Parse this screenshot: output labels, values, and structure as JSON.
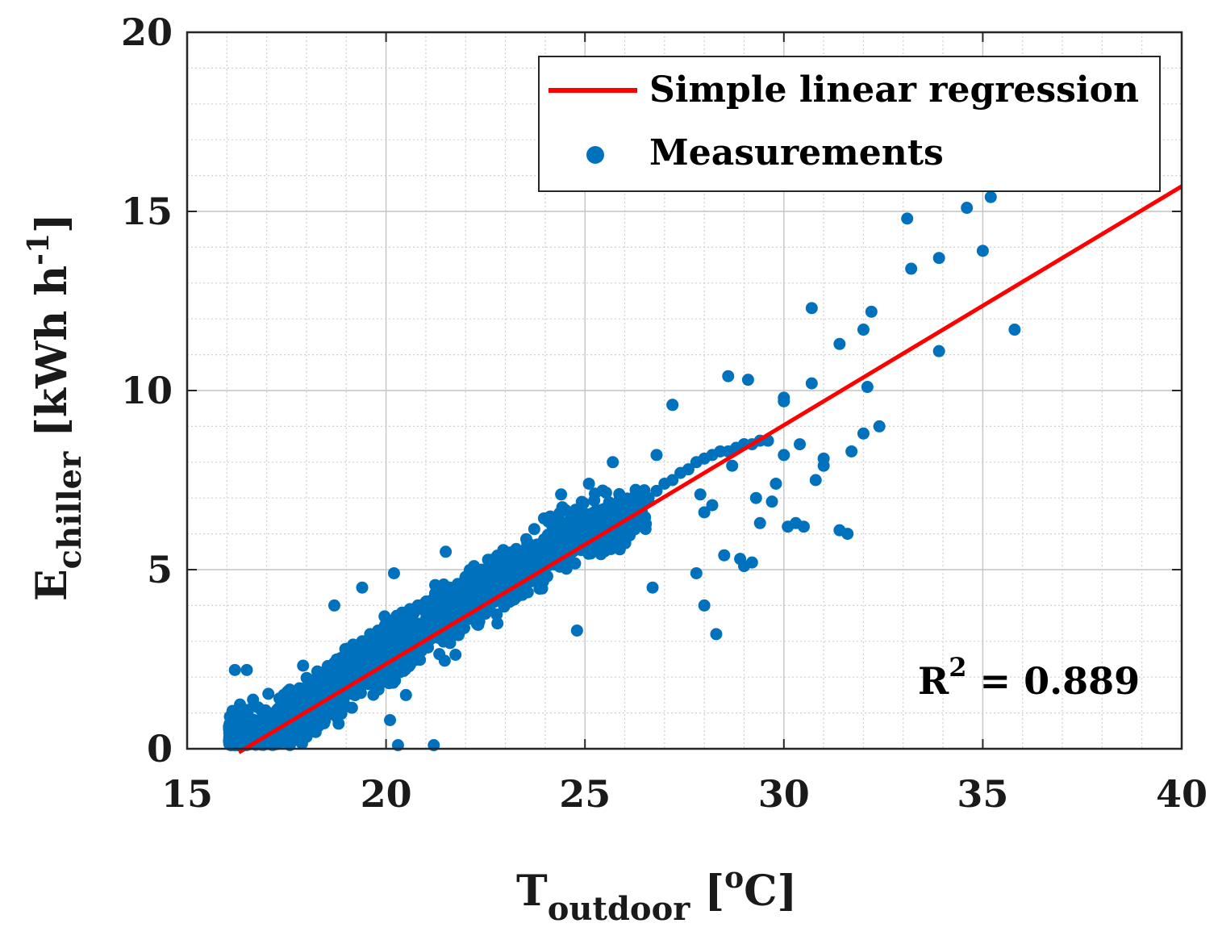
{
  "chart_data": {
    "type": "scatter",
    "title": "",
    "xlabel": {
      "main": "T",
      "sub": "outdoor",
      "open": " [",
      "sup": "o",
      "close": "C]"
    },
    "ylabel": {
      "main": "E",
      "sub": "chiller",
      "text": " [kWh h",
      "sup": "-1",
      "close": "]"
    },
    "xlim": [
      15,
      40
    ],
    "ylim": [
      0,
      20
    ],
    "xticks": [
      15,
      20,
      25,
      30,
      35,
      40
    ],
    "yticks": [
      0,
      5,
      10,
      15,
      20
    ],
    "grid": true,
    "minor_grid": true,
    "legend": {
      "placement": "top-right",
      "entries": [
        "Simple linear regression",
        "Measurements"
      ]
    },
    "annotation": {
      "prefix": "R",
      "sup": "2",
      "text": " = 0.889"
    },
    "colors": {
      "regression": "#ff0000",
      "measurements": "#0072bd"
    },
    "series": [
      {
        "name": "Simple linear regression",
        "type": "line",
        "x": [
          16.3,
          40.0
        ],
        "y": [
          -0.1,
          15.7
        ]
      },
      {
        "name": "Measurements",
        "type": "scatter",
        "notes": "Dense cloud of ~2000 points (approx. 16–26 °C, 0–7 kWh/h) plus sparse outliers listed below",
        "x": [
          16.2,
          16.4,
          16.8,
          17.0,
          17.3,
          17.5,
          17.7,
          17.9,
          18.1,
          18.3,
          18.5,
          18.7,
          19.0,
          19.2,
          19.4,
          19.6,
          19.8,
          20.0,
          20.2,
          20.4,
          20.6,
          20.8,
          21.0,
          21.2,
          21.4,
          21.6,
          21.8,
          22.0,
          22.2,
          22.4,
          22.6,
          22.8,
          23.0,
          23.2,
          23.4,
          23.6,
          23.8,
          24.0,
          24.2,
          24.4,
          24.6,
          24.8,
          25.0,
          25.2,
          25.4,
          25.6,
          25.8,
          26.0,
          26.2,
          26.4,
          26.6,
          26.8,
          27.0,
          27.2,
          27.4,
          27.6,
          27.8,
          28.0,
          28.2,
          28.4,
          28.6,
          28.8,
          29.0,
          29.2,
          29.4,
          29.6,
          16.2,
          16.5,
          20.3,
          21.2,
          20.5,
          20.1,
          20.2,
          19.4,
          18.7,
          21.5,
          22.8,
          22.3,
          23.1,
          25.7,
          26.8,
          25.1,
          24.4,
          24.8,
          27.2,
          26.7,
          28.3,
          28.0,
          27.8,
          28.5,
          28.9,
          29.0,
          29.2,
          29.4,
          29.8,
          30.0,
          30.4,
          30.1,
          30.8,
          31.0,
          31.4,
          31.6,
          31.7,
          32.0,
          32.1,
          32.2,
          32.4,
          31.4,
          32.0,
          30.7,
          30.0,
          29.1,
          28.6,
          27.2,
          33.1,
          33.2,
          33.9,
          33.9,
          34.6,
          35.0,
          35.2,
          35.8,
          30.0,
          30.7,
          31.0,
          30.5,
          30.3,
          29.7,
          29.3,
          29.0,
          28.7,
          28.2,
          28.0,
          27.9
        ],
        "y": [
          0.1,
          0.2,
          0.5,
          0.6,
          0.8,
          1.0,
          1.3,
          1.5,
          1.8,
          2.0,
          2.2,
          2.4,
          2.6,
          2.8,
          3.0,
          3.2,
          3.3,
          3.5,
          3.6,
          3.8,
          3.9,
          4.0,
          4.1,
          4.2,
          4.3,
          4.5,
          4.6,
          4.8,
          4.9,
          5.0,
          5.1,
          5.2,
          5.3,
          5.4,
          5.5,
          5.6,
          5.7,
          5.8,
          5.9,
          6.0,
          6.0,
          6.1,
          6.2,
          6.2,
          6.3,
          6.3,
          6.4,
          6.5,
          6.6,
          6.8,
          7.0,
          7.2,
          7.4,
          7.5,
          7.7,
          7.8,
          8.0,
          8.1,
          8.2,
          8.3,
          8.3,
          8.4,
          8.5,
          8.5,
          8.6,
          8.6,
          2.2,
          2.2,
          0.1,
          0.1,
          1.5,
          0.8,
          4.9,
          4.5,
          4.0,
          5.5,
          3.5,
          3.5,
          4.1,
          8.0,
          8.2,
          7.4,
          7.1,
          3.3,
          9.6,
          4.5,
          3.2,
          4.0,
          4.9,
          5.4,
          5.3,
          5.1,
          5.2,
          6.3,
          7.4,
          9.8,
          8.5,
          6.2,
          7.5,
          8.1,
          6.1,
          6.0,
          8.3,
          8.8,
          10.1,
          12.2,
          9.0,
          11.3,
          11.7,
          10.2,
          9.7,
          10.3,
          10.4,
          9.6,
          14.8,
          13.4,
          13.7,
          11.1,
          15.1,
          13.9,
          15.4,
          11.7,
          8.2,
          12.3,
          7.9,
          6.2,
          6.3,
          6.9,
          7.0,
          8.5,
          7.9,
          6.8,
          6.6,
          7.1
        ]
      }
    ]
  }
}
